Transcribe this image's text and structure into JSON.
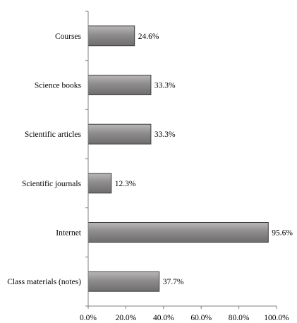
{
  "chart_data": {
    "type": "bar",
    "orientation": "horizontal",
    "title": "",
    "xlabel": "",
    "ylabel": "",
    "categories": [
      "Courses",
      "Science books",
      "Scientific articles",
      "Scientific journals",
      "Internet",
      "Class materials (notes)"
    ],
    "values": [
      24.6,
      33.3,
      33.3,
      12.3,
      95.6,
      37.7
    ],
    "value_labels": [
      "24.6%",
      "33.3%",
      "33.3%",
      "12.3%",
      "95.6%",
      "37.7%"
    ],
    "xlim": [
      0,
      100
    ],
    "x_ticks": [
      0,
      20,
      40,
      60,
      80,
      100
    ],
    "x_tick_labels": [
      "0.0%",
      "20.0%",
      "40.0%",
      "60.0%",
      "80.0%",
      "100.0%"
    ],
    "grid": false,
    "legend": "none",
    "colors": {
      "bar_fill": "#8a8888",
      "bar_edge": "#3f3f3f",
      "axis": "#7f7f7f"
    }
  }
}
